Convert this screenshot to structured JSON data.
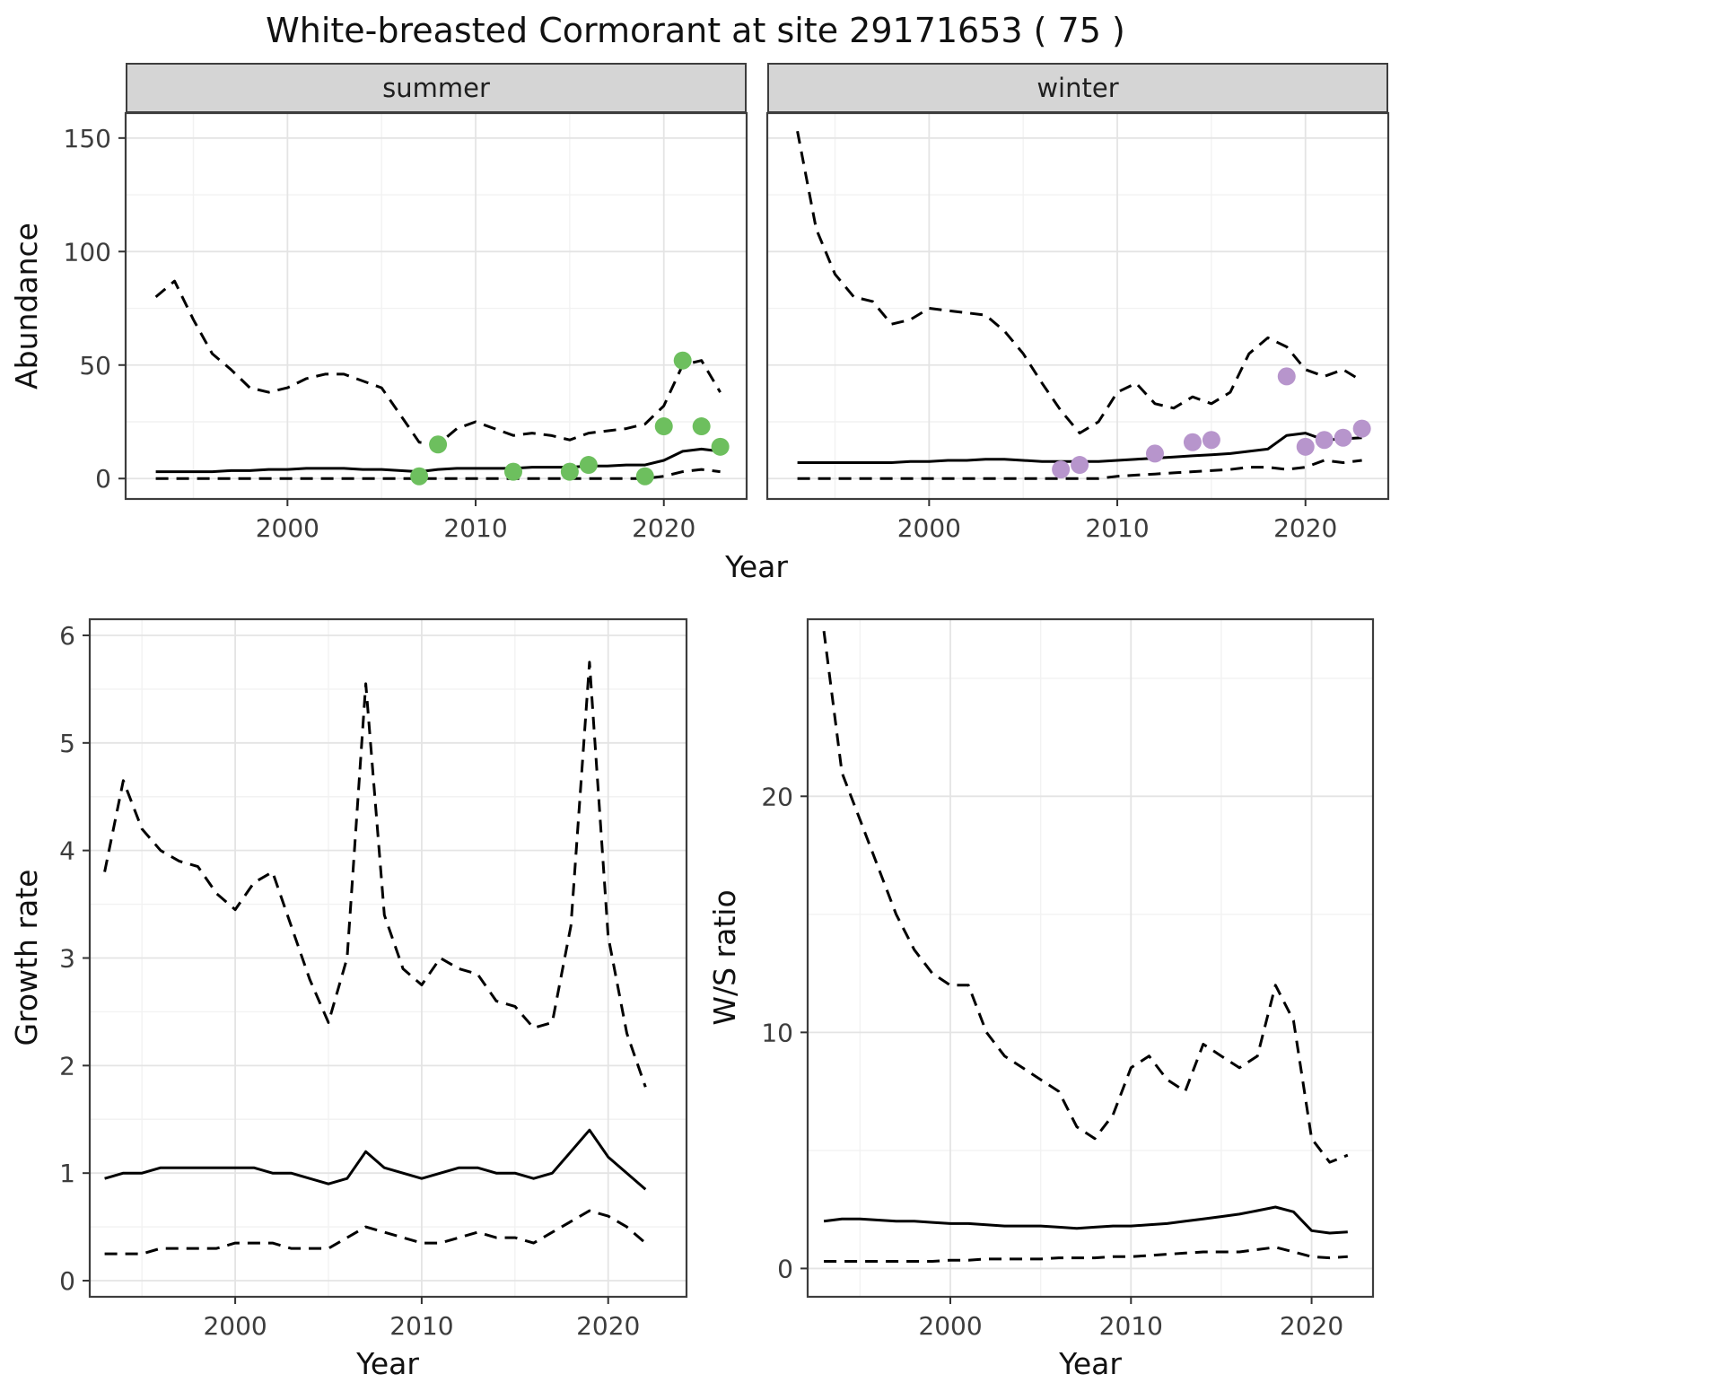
{
  "title": "White-breasted Cormorant at site 29171653 ( 75 )",
  "colors": {
    "summer_points": "#6dbf5e",
    "winter_points": "#b795cc",
    "line": "#000000",
    "grid_major": "#e4e4e4",
    "grid_minor": "#f2f2f2",
    "panel_border": "#3d3d3d",
    "strip_bg": "#d5d5d5"
  },
  "top_row": {
    "ylabel": "Abundance",
    "xlabel": "Year",
    "facets": [
      "summer",
      "winter"
    ]
  },
  "bottom_left": {
    "ylabel": "Growth rate",
    "xlabel": "Year"
  },
  "bottom_right": {
    "ylabel": "W/S ratio",
    "xlabel": "Year"
  },
  "chart_data": [
    {
      "id": "abundance-summer",
      "type": "line",
      "facet": "summer",
      "xlabel": "Year",
      "ylabel": "Abundance",
      "xlim": [
        1991.4,
        2024.4
      ],
      "ylim": [
        -9,
        161
      ],
      "x_ticks": [
        2000,
        2010,
        2020
      ],
      "y_ticks": [
        0,
        50,
        100,
        150
      ],
      "show_y_tick_labels": true,
      "legend": "none",
      "years": [
        1993,
        1994,
        1995,
        1996,
        1997,
        1998,
        1999,
        2000,
        2001,
        2002,
        2003,
        2004,
        2005,
        2006,
        2007,
        2008,
        2009,
        2010,
        2011,
        2012,
        2013,
        2014,
        2015,
        2016,
        2017,
        2018,
        2019,
        2020,
        2021,
        2022,
        2023
      ],
      "series": [
        {
          "name": "upper 95% CI",
          "style": "dashed",
          "values": [
            80,
            87,
            70,
            55,
            48,
            40,
            38,
            40,
            44,
            46,
            46,
            43,
            40,
            28,
            16,
            15,
            22,
            25,
            22,
            19,
            20,
            19,
            17,
            20,
            21,
            22,
            24,
            32,
            50,
            52,
            38
          ]
        },
        {
          "name": "median",
          "style": "solid",
          "values": [
            3,
            3,
            3,
            3,
            3.5,
            3.5,
            4,
            4,
            4.5,
            4.5,
            4.5,
            4,
            4,
            3.5,
            3,
            4,
            4.5,
            4.5,
            4.5,
            4.5,
            5,
            5,
            5,
            5.5,
            5.5,
            6,
            6,
            8,
            12,
            13,
            12
          ]
        },
        {
          "name": "lower 95% CI",
          "style": "dashed",
          "values": [
            0,
            0,
            0,
            0,
            0,
            0,
            0,
            0,
            0,
            0,
            0,
            0,
            0,
            0,
            0,
            0,
            0,
            0,
            0,
            0,
            0,
            0,
            0,
            0,
            0,
            0,
            0,
            1,
            3,
            4,
            3
          ]
        }
      ],
      "observed_points": {
        "name": "observed summer counts",
        "color_key": "summer_points",
        "x": [
          2007,
          2008,
          2012,
          2015,
          2016,
          2019,
          2020,
          2021,
          2022,
          2023
        ],
        "y": [
          1,
          15,
          3,
          3,
          6,
          1,
          23,
          52,
          23,
          14
        ]
      }
    },
    {
      "id": "abundance-winter",
      "type": "line",
      "facet": "winter",
      "xlabel": "Year",
      "ylabel": "Abundance",
      "xlim": [
        1991.4,
        2024.4
      ],
      "ylim": [
        -9,
        161
      ],
      "x_ticks": [
        2000,
        2010,
        2020
      ],
      "y_ticks": [
        0,
        50,
        100,
        150
      ],
      "show_y_tick_labels": false,
      "legend": "none",
      "years": [
        1993,
        1994,
        1995,
        1996,
        1997,
        1998,
        1999,
        2000,
        2001,
        2002,
        2003,
        2004,
        2005,
        2006,
        2007,
        2008,
        2009,
        2010,
        2011,
        2012,
        2013,
        2014,
        2015,
        2016,
        2017,
        2018,
        2019,
        2020,
        2021,
        2022,
        2023
      ],
      "series": [
        {
          "name": "upper 95% CI",
          "style": "dashed",
          "values": [
            153,
            110,
            90,
            80,
            78,
            68,
            70,
            75,
            74,
            73,
            72,
            65,
            55,
            42,
            30,
            20,
            25,
            38,
            42,
            33,
            31,
            36,
            33,
            38,
            55,
            62,
            58,
            48,
            45,
            48,
            43
          ]
        },
        {
          "name": "median",
          "style": "solid",
          "values": [
            7,
            7,
            7,
            7,
            7,
            7,
            7.5,
            7.5,
            8,
            8,
            8.5,
            8.5,
            8,
            7.5,
            7.5,
            7.5,
            7.5,
            8,
            8.5,
            9,
            9.5,
            10,
            10.5,
            11,
            12,
            13,
            19,
            20,
            17,
            17.5,
            18
          ]
        },
        {
          "name": "lower 95% CI",
          "style": "dashed",
          "values": [
            0,
            0,
            0,
            0,
            0,
            0,
            0,
            0,
            0,
            0,
            0,
            0,
            0,
            0,
            0,
            0,
            0,
            1,
            1.5,
            2,
            2.5,
            3,
            3.5,
            4,
            5,
            5,
            4,
            5,
            8,
            7,
            8
          ]
        }
      ],
      "observed_points": {
        "name": "observed winter counts",
        "color_key": "winter_points",
        "x": [
          2007,
          2008,
          2012,
          2014,
          2015,
          2019,
          2020,
          2021,
          2022,
          2023
        ],
        "y": [
          4,
          6,
          11,
          16,
          17,
          45,
          14,
          17,
          18,
          22
        ]
      }
    },
    {
      "id": "growth-rate",
      "type": "line",
      "facet": "",
      "xlabel": "Year",
      "ylabel": "Growth rate",
      "xlim": [
        1992.2,
        2024.2
      ],
      "ylim": [
        -0.15,
        6.15
      ],
      "x_ticks": [
        2000,
        2010,
        2020
      ],
      "y_ticks": [
        0,
        1,
        2,
        3,
        4,
        5,
        6
      ],
      "show_y_tick_labels": true,
      "legend": "none",
      "years": [
        1993,
        1994,
        1995,
        1996,
        1997,
        1998,
        1999,
        2000,
        2001,
        2002,
        2003,
        2004,
        2005,
        2006,
        2007,
        2008,
        2009,
        2010,
        2011,
        2012,
        2013,
        2014,
        2015,
        2016,
        2017,
        2018,
        2019,
        2020,
        2021,
        2022
      ],
      "series": [
        {
          "name": "upper 95% CI",
          "style": "dashed",
          "values": [
            3.8,
            4.65,
            4.2,
            4.0,
            3.9,
            3.85,
            3.6,
            3.45,
            3.7,
            3.8,
            3.3,
            2.8,
            2.4,
            3.0,
            5.55,
            3.4,
            2.9,
            2.75,
            3.0,
            2.9,
            2.85,
            2.6,
            2.55,
            2.35,
            2.4,
            3.3,
            5.75,
            3.2,
            2.3,
            1.8
          ]
        },
        {
          "name": "median",
          "style": "solid",
          "values": [
            0.95,
            1.0,
            1.0,
            1.05,
            1.05,
            1.05,
            1.05,
            1.05,
            1.05,
            1.0,
            1.0,
            0.95,
            0.9,
            0.95,
            1.2,
            1.05,
            1.0,
            0.95,
            1.0,
            1.05,
            1.05,
            1.0,
            1.0,
            0.95,
            1.0,
            1.2,
            1.4,
            1.15,
            1.0,
            0.85
          ]
        },
        {
          "name": "lower 95% CI",
          "style": "dashed",
          "values": [
            0.25,
            0.25,
            0.25,
            0.3,
            0.3,
            0.3,
            0.3,
            0.35,
            0.35,
            0.35,
            0.3,
            0.3,
            0.3,
            0.4,
            0.5,
            0.45,
            0.4,
            0.35,
            0.35,
            0.4,
            0.45,
            0.4,
            0.4,
            0.35,
            0.45,
            0.55,
            0.65,
            0.6,
            0.5,
            0.35
          ]
        }
      ]
    },
    {
      "id": "ws-ratio",
      "type": "line",
      "facet": "",
      "xlabel": "Year",
      "ylabel": "W/S ratio",
      "xlim": [
        1992.1,
        2023.4
      ],
      "ylim": [
        -1.2,
        27.5
      ],
      "x_ticks": [
        2000,
        2010,
        2020
      ],
      "y_ticks": [
        0,
        10,
        20
      ],
      "show_y_tick_labels": true,
      "legend": "none",
      "years": [
        1993,
        1994,
        1995,
        1996,
        1997,
        1998,
        1999,
        2000,
        2001,
        2002,
        2003,
        2004,
        2005,
        2006,
        2007,
        2008,
        2009,
        2010,
        2011,
        2012,
        2013,
        2014,
        2015,
        2016,
        2017,
        2018,
        2019,
        2020,
        2021,
        2022
      ],
      "series": [
        {
          "name": "upper 95% CI",
          "style": "dashed",
          "values": [
            27,
            21,
            19,
            17,
            15,
            13.5,
            12.5,
            12,
            12,
            10,
            9,
            8.5,
            8,
            7.5,
            6,
            5.5,
            6.5,
            8.5,
            9,
            8,
            7.5,
            9.5,
            9,
            8.5,
            9,
            12,
            10.5,
            5.5,
            4.5,
            4.8
          ]
        },
        {
          "name": "median",
          "style": "solid",
          "values": [
            2.0,
            2.1,
            2.1,
            2.05,
            2.0,
            2.0,
            1.95,
            1.9,
            1.9,
            1.85,
            1.8,
            1.8,
            1.8,
            1.75,
            1.7,
            1.75,
            1.8,
            1.8,
            1.85,
            1.9,
            2.0,
            2.1,
            2.2,
            2.3,
            2.45,
            2.6,
            2.4,
            1.6,
            1.5,
            1.55
          ]
        },
        {
          "name": "lower 95% CI",
          "style": "dashed",
          "values": [
            0.3,
            0.3,
            0.3,
            0.3,
            0.3,
            0.3,
            0.3,
            0.35,
            0.35,
            0.4,
            0.4,
            0.4,
            0.4,
            0.45,
            0.45,
            0.45,
            0.5,
            0.5,
            0.55,
            0.6,
            0.65,
            0.7,
            0.7,
            0.7,
            0.8,
            0.9,
            0.7,
            0.5,
            0.45,
            0.5
          ]
        }
      ]
    }
  ]
}
